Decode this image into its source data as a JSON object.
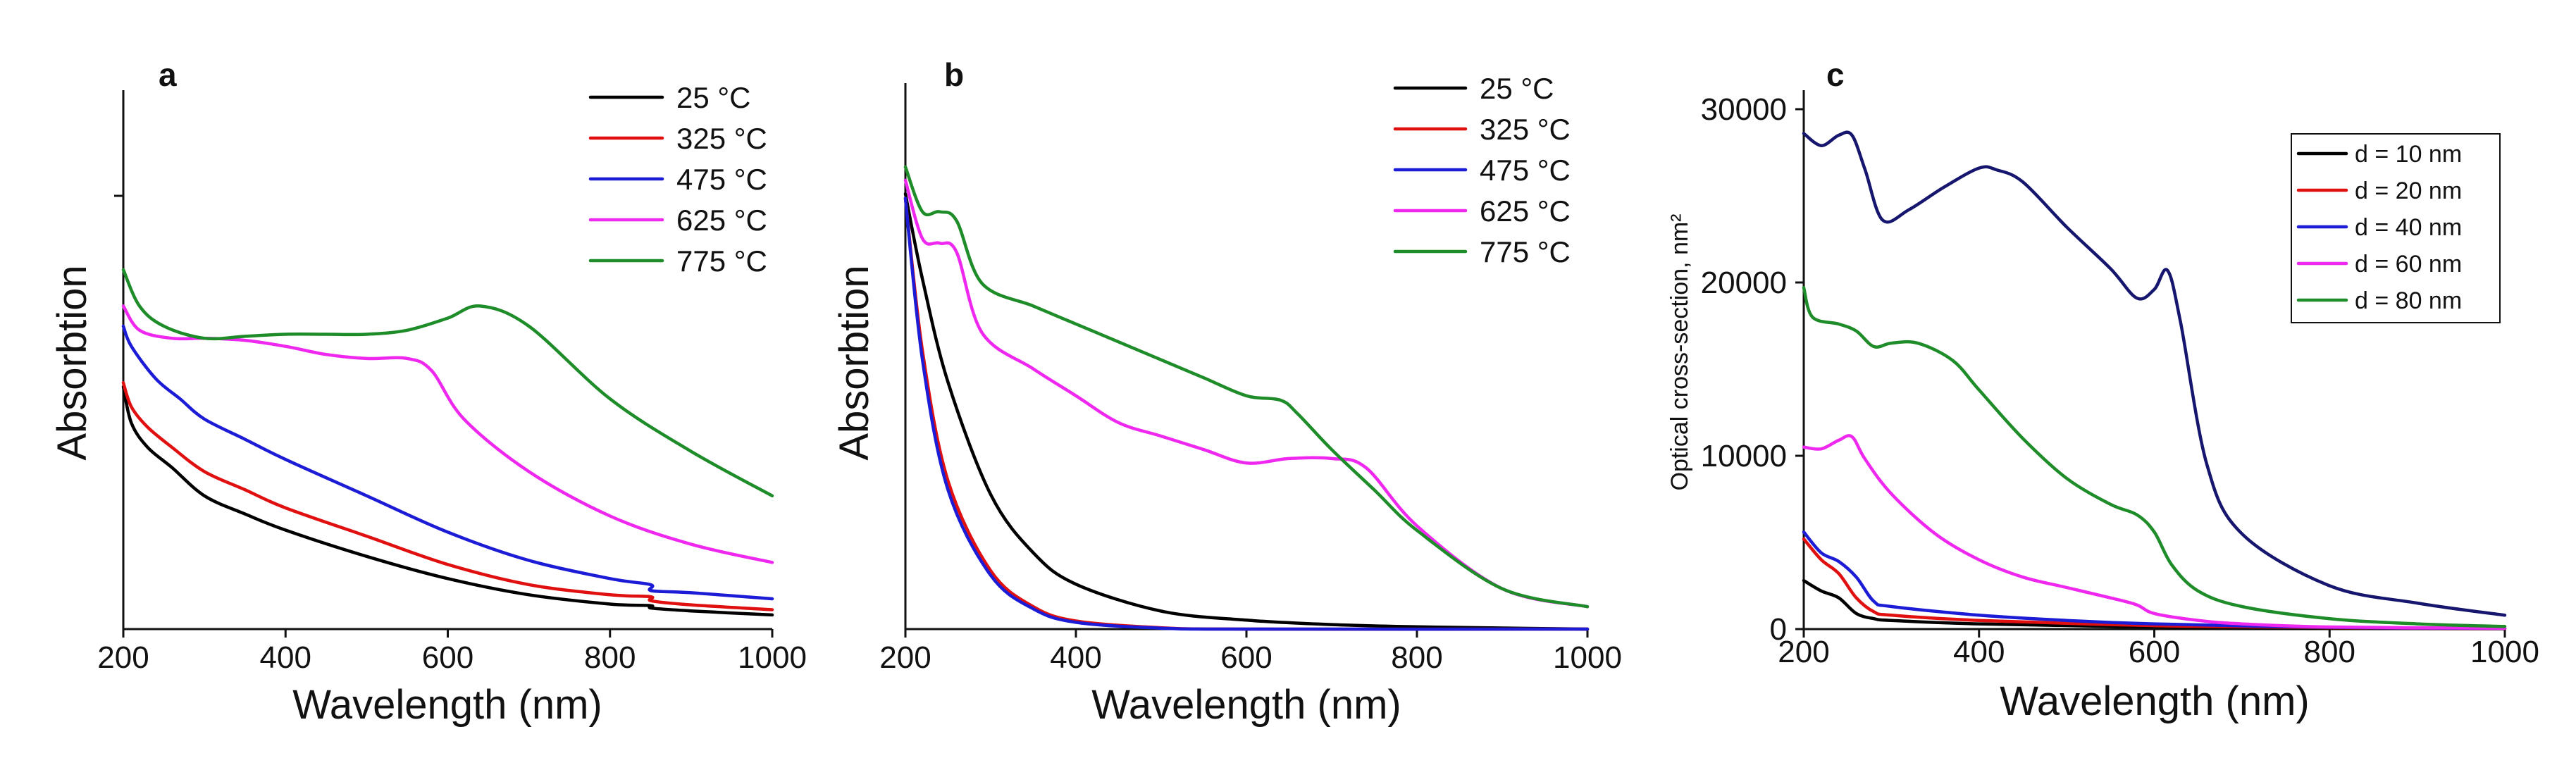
{
  "chart_data": [
    {
      "type": "line",
      "panel_label": "a",
      "xlabel": "Wavelength (nm)",
      "ylabel": "Absorbtion",
      "xlim": [
        200,
        1000
      ],
      "ylim": [
        0,
        1
      ],
      "xticks": [
        "200",
        "400",
        "600",
        "800",
        "1000"
      ],
      "yticks": [],
      "legend_position": "top-right",
      "legend_boxed": false,
      "series": [
        {
          "name": "25 °C",
          "color": "#000000",
          "x": [
            200,
            210,
            230,
            260,
            300,
            350,
            400,
            500,
            600,
            700,
            800,
            850,
            851,
            900,
            1000
          ],
          "values": [
            0.6,
            0.51,
            0.45,
            0.4,
            0.33,
            0.285,
            0.245,
            0.18,
            0.125,
            0.085,
            0.062,
            0.058,
            0.052,
            0.045,
            0.035
          ]
        },
        {
          "name": "325 °C",
          "color": "#e01010",
          "x": [
            200,
            210,
            230,
            260,
            300,
            350,
            400,
            500,
            600,
            700,
            800,
            850,
            851,
            900,
            1000
          ],
          "values": [
            0.61,
            0.55,
            0.5,
            0.45,
            0.39,
            0.345,
            0.3,
            0.23,
            0.16,
            0.11,
            0.085,
            0.08,
            0.07,
            0.06,
            0.048
          ]
        },
        {
          "name": "475 °C",
          "color": "#1c1cd6",
          "x": [
            200,
            210,
            240,
            270,
            300,
            350,
            400,
            500,
            600,
            700,
            800,
            850,
            851,
            900,
            1000
          ],
          "values": [
            0.75,
            0.7,
            0.62,
            0.57,
            0.52,
            0.47,
            0.42,
            0.33,
            0.24,
            0.17,
            0.125,
            0.11,
            0.095,
            0.09,
            0.075
          ]
        },
        {
          "name": "625 °C",
          "color": "#ee28ee",
          "x": [
            200,
            220,
            260,
            300,
            350,
            400,
            450,
            500,
            550,
            580,
            620,
            700,
            800,
            900,
            1000
          ],
          "values": [
            0.8,
            0.74,
            0.72,
            0.72,
            0.715,
            0.7,
            0.68,
            0.67,
            0.67,
            0.64,
            0.52,
            0.39,
            0.28,
            0.21,
            0.165
          ]
        },
        {
          "name": "775 °C",
          "color": "#1e8c28",
          "x": [
            200,
            220,
            250,
            300,
            350,
            400,
            450,
            500,
            550,
            600,
            640,
            700,
            800,
            900,
            1000
          ],
          "values": [
            0.89,
            0.8,
            0.75,
            0.72,
            0.725,
            0.73,
            0.73,
            0.73,
            0.74,
            0.77,
            0.8,
            0.75,
            0.57,
            0.44,
            0.33
          ]
        }
      ]
    },
    {
      "type": "line",
      "panel_label": "b",
      "xlabel": "Wavelength (nm)",
      "ylabel": "Absorbtion",
      "xlim": [
        200,
        1000
      ],
      "ylim": [
        0,
        1
      ],
      "xticks": [
        "200",
        "400",
        "600",
        "800",
        "1000"
      ],
      "yticks": [],
      "legend_position": "top-right",
      "legend_boxed": false,
      "series": [
        {
          "name": "25 °C",
          "color": "#000000",
          "x": [
            200,
            220,
            250,
            300,
            350,
            400,
            500,
            600,
            700,
            800,
            1000
          ],
          "values": [
            0.97,
            0.78,
            0.55,
            0.3,
            0.17,
            0.1,
            0.04,
            0.02,
            0.01,
            0.005,
            0.0
          ]
        },
        {
          "name": "325 °C",
          "color": "#e01010",
          "x": [
            200,
            220,
            250,
            300,
            350,
            400,
            500,
            600,
            1000
          ],
          "values": [
            0.96,
            0.62,
            0.33,
            0.13,
            0.05,
            0.018,
            0.003,
            0.0,
            0.0
          ]
        },
        {
          "name": "475 °C",
          "color": "#1c1cd6",
          "x": [
            200,
            220,
            250,
            300,
            350,
            400,
            500,
            600,
            1000
          ],
          "values": [
            0.96,
            0.6,
            0.31,
            0.12,
            0.045,
            0.015,
            0.002,
            0.0,
            0.0
          ]
        },
        {
          "name": "625 °C",
          "color": "#ee28ee",
          "x": [
            200,
            220,
            240,
            260,
            290,
            350,
            400,
            450,
            500,
            550,
            600,
            650,
            700,
            740,
            800,
            900,
            1000
          ],
          "values": [
            1.0,
            0.87,
            0.86,
            0.84,
            0.66,
            0.58,
            0.52,
            0.46,
            0.43,
            0.4,
            0.37,
            0.38,
            0.38,
            0.36,
            0.23,
            0.09,
            0.05
          ]
        },
        {
          "name": "775 °C",
          "color": "#1e8c28",
          "x": [
            200,
            220,
            240,
            260,
            290,
            350,
            400,
            450,
            500,
            550,
            600,
            640,
            660,
            700,
            750,
            800,
            900,
            1000
          ],
          "values": [
            1.03,
            0.93,
            0.93,
            0.91,
            0.77,
            0.72,
            0.68,
            0.64,
            0.6,
            0.56,
            0.52,
            0.51,
            0.48,
            0.4,
            0.31,
            0.22,
            0.09,
            0.05
          ]
        }
      ]
    },
    {
      "type": "line",
      "panel_label": "c",
      "xlabel": "Wavelength (nm)",
      "ylabel": "Optical cross-section, nm²",
      "xlim": [
        200,
        1000
      ],
      "ylim": [
        0,
        30000
      ],
      "xticks": [
        "200",
        "400",
        "600",
        "800",
        "1000"
      ],
      "yticks": [
        "0",
        "10000",
        "20000",
        "30000"
      ],
      "legend_position": "top-right",
      "legend_boxed": true,
      "series": [
        {
          "name": "d = 10 nm",
          "color": "#000000",
          "x": [
            200,
            220,
            240,
            260,
            280,
            300,
            400,
            600,
            800,
            1000
          ],
          "values": [
            2800,
            2200,
            1800,
            900,
            600,
            500,
            300,
            120,
            50,
            20
          ]
        },
        {
          "name": "d = 20 nm",
          "color": "#e01010",
          "x": [
            200,
            220,
            240,
            260,
            280,
            300,
            400,
            600,
            800,
            1000
          ],
          "values": [
            5200,
            4000,
            3200,
            1800,
            1000,
            800,
            500,
            200,
            80,
            30
          ]
        },
        {
          "name": "d = 40 nm",
          "color": "#1c1cd6",
          "x": [
            200,
            220,
            240,
            260,
            280,
            300,
            400,
            500,
            600,
            800,
            1000
          ],
          "values": [
            5600,
            4400,
            3900,
            3000,
            1600,
            1300,
            800,
            500,
            300,
            100,
            40
          ]
        },
        {
          "name": "d = 60 nm",
          "color": "#ee28ee",
          "x": [
            200,
            220,
            240,
            255,
            270,
            300,
            350,
            400,
            450,
            500,
            550,
            580,
            600,
            650,
            700,
            800,
            1000
          ],
          "values": [
            10500,
            10400,
            10900,
            11100,
            9800,
            7800,
            5500,
            4000,
            3000,
            2400,
            1800,
            1400,
            900,
            500,
            300,
            120,
            50
          ]
        },
        {
          "name": "d = 80 nm",
          "color": "#1e8c28",
          "x": [
            200,
            210,
            240,
            260,
            280,
            300,
            330,
            370,
            400,
            450,
            500,
            550,
            580,
            600,
            620,
            650,
            700,
            800,
            900,
            1000
          ],
          "values": [
            19700,
            18000,
            17600,
            17200,
            16300,
            16500,
            16500,
            15500,
            13800,
            11000,
            8700,
            7200,
            6600,
            5600,
            3700,
            2200,
            1300,
            600,
            300,
            150
          ]
        },
        {
          "name": "",
          "color": "#16166e",
          "x": [
            200,
            220,
            240,
            255,
            270,
            290,
            320,
            360,
            400,
            420,
            450,
            500,
            550,
            580,
            600,
            615,
            630,
            660,
            700,
            800,
            900,
            1000
          ],
          "values": [
            28600,
            27900,
            28500,
            28500,
            26500,
            23600,
            24200,
            25500,
            26600,
            26500,
            25800,
            23200,
            20800,
            19100,
            19600,
            20700,
            17700,
            9500,
            5500,
            2500,
            1500,
            800
          ]
        }
      ]
    }
  ]
}
